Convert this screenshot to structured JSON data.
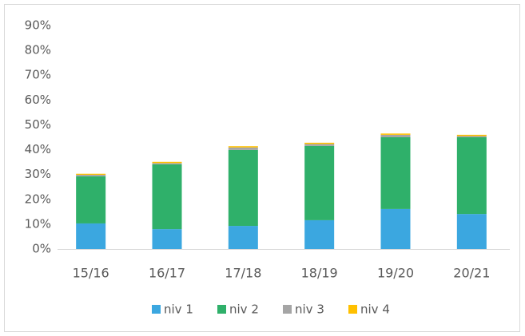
{
  "chart_data": {
    "type": "stacked_bar",
    "categories": [
      "15/16",
      "16/17",
      "17/18",
      "18/19",
      "19/20",
      "20/21"
    ],
    "series": [
      {
        "name": "niv 1",
        "color": "#3ba7e0",
        "values": [
          10.3,
          8.0,
          9.3,
          11.6,
          16.1,
          14.1
        ]
      },
      {
        "name": "niv 2",
        "color": "#2fb06a",
        "values": [
          19.0,
          26.1,
          30.6,
          29.9,
          28.9,
          30.9
        ]
      },
      {
        "name": "niv 3",
        "color": "#a5a5a5",
        "values": [
          0.6,
          0.5,
          1.0,
          0.8,
          1.0,
          0.5
        ]
      },
      {
        "name": "niv 4",
        "color": "#ffc000",
        "values": [
          0.4,
          0.5,
          0.5,
          0.5,
          0.5,
          0.5
        ]
      }
    ],
    "ylim": [
      0,
      90
    ],
    "yticks": [
      {
        "value": 0,
        "label": "0%"
      },
      {
        "value": 10,
        "label": "10%"
      },
      {
        "value": 20,
        "label": "20%"
      },
      {
        "value": 30,
        "label": "30%"
      },
      {
        "value": 40,
        "label": "40%"
      },
      {
        "value": 50,
        "label": "50%"
      },
      {
        "value": 60,
        "label": "60%"
      },
      {
        "value": 70,
        "label": "70%"
      },
      {
        "value": 80,
        "label": "80%"
      },
      {
        "value": 90,
        "label": "90%"
      }
    ],
    "grid": false,
    "legend": "bottom"
  }
}
